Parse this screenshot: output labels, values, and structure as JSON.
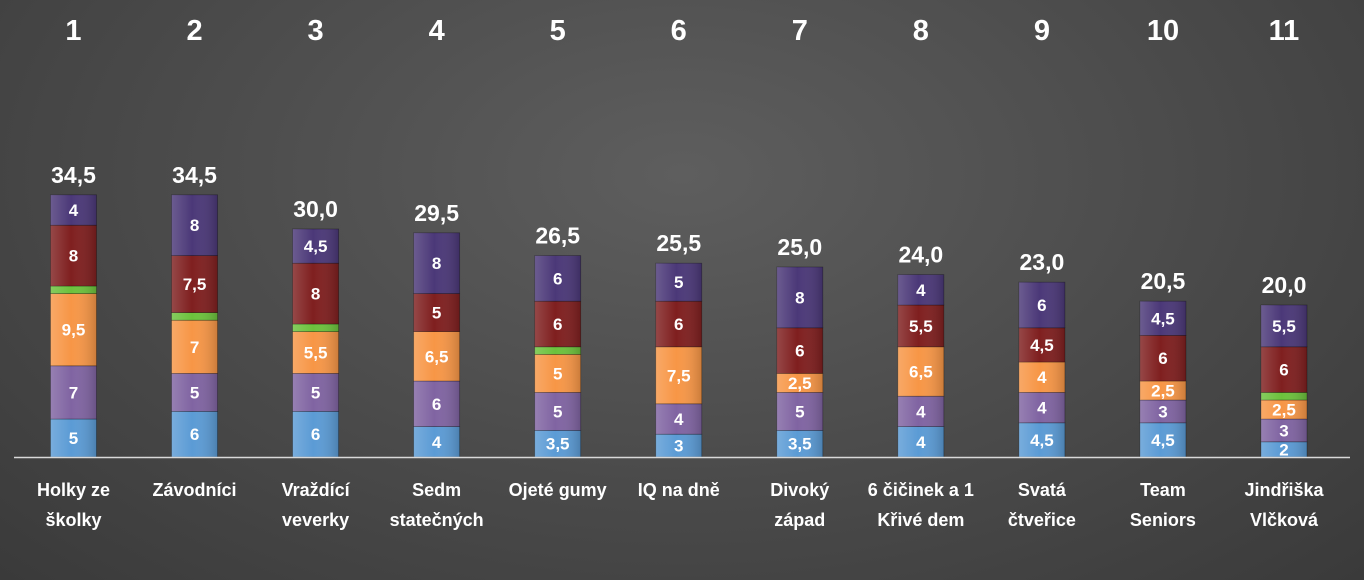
{
  "chart_data": {
    "type": "bar",
    "stacked": true,
    "ranks": [
      "1",
      "2",
      "3",
      "4",
      "5",
      "6",
      "7",
      "8",
      "9",
      "10",
      "11"
    ],
    "categories": [
      [
        "Holky ze",
        "školky"
      ],
      [
        "Závodníci"
      ],
      [
        "Vraždící",
        "veverky"
      ],
      [
        "Sedm",
        "statečných"
      ],
      [
        "Ojeté gumy"
      ],
      [
        "IQ na dně"
      ],
      [
        "Divoký",
        "západ"
      ],
      [
        "6 čičinek a 1",
        "Křivé dem"
      ],
      [
        "Svatá",
        "čtveřice"
      ],
      [
        "Team",
        "Seniors"
      ],
      [
        "Jindřiška",
        "Vlčková"
      ]
    ],
    "totals": [
      "34,5",
      "34,5",
      "30,0",
      "29,5",
      "26,5",
      "25,5",
      "25,0",
      "24,0",
      "23,0",
      "20,5",
      "20,0"
    ],
    "series_colors": [
      "#5b9bd5",
      "#8064a2",
      "#f79646",
      "#6cc13c",
      "#7f1f1f",
      "#4b3878"
    ],
    "series": [
      {
        "values": [
          5,
          6,
          6,
          4,
          3.5,
          3,
          3.5,
          4,
          4.5,
          4.5,
          2
        ],
        "labels": [
          "5",
          "6",
          "6",
          "4",
          "3,5",
          "3",
          "3,5",
          "4",
          "4,5",
          "4,5",
          "2"
        ]
      },
      {
        "values": [
          7,
          5,
          5,
          6,
          5,
          4,
          5,
          4,
          4,
          3,
          3
        ],
        "labels": [
          "7",
          "5",
          "5",
          "6",
          "5",
          "4",
          "5",
          "4",
          "4",
          "3",
          "3"
        ]
      },
      {
        "values": [
          9.5,
          7,
          5.5,
          6.5,
          5,
          7.5,
          2.5,
          6.5,
          4,
          2.5,
          2.5
        ],
        "labels": [
          "9,5",
          "7",
          "5,5",
          "6,5",
          "5",
          "7,5",
          "2,5",
          "6,5",
          "4",
          "2,5",
          "2,5"
        ]
      },
      {
        "values": [
          1,
          1,
          1,
          0,
          1,
          0,
          0,
          0,
          0,
          0,
          1
        ],
        "labels": [
          "",
          "",
          "",
          "",
          "",
          "",
          "",
          "",
          "",
          "",
          ""
        ]
      },
      {
        "values": [
          8,
          7.5,
          8,
          5,
          6,
          6,
          6,
          5.5,
          4.5,
          6,
          6
        ],
        "labels": [
          "8",
          "7,5",
          "8",
          "5",
          "6",
          "6",
          "6",
          "5,5",
          "4,5",
          "6",
          "6"
        ]
      },
      {
        "values": [
          4,
          8,
          4.5,
          8,
          6,
          5,
          8,
          4,
          6,
          4.5,
          5.5
        ],
        "labels": [
          "4",
          "8",
          "4,5",
          "8",
          "6",
          "5",
          "8",
          "4",
          "6",
          "4,5",
          "5,5"
        ]
      }
    ],
    "ylim": [
      0,
      36
    ]
  }
}
